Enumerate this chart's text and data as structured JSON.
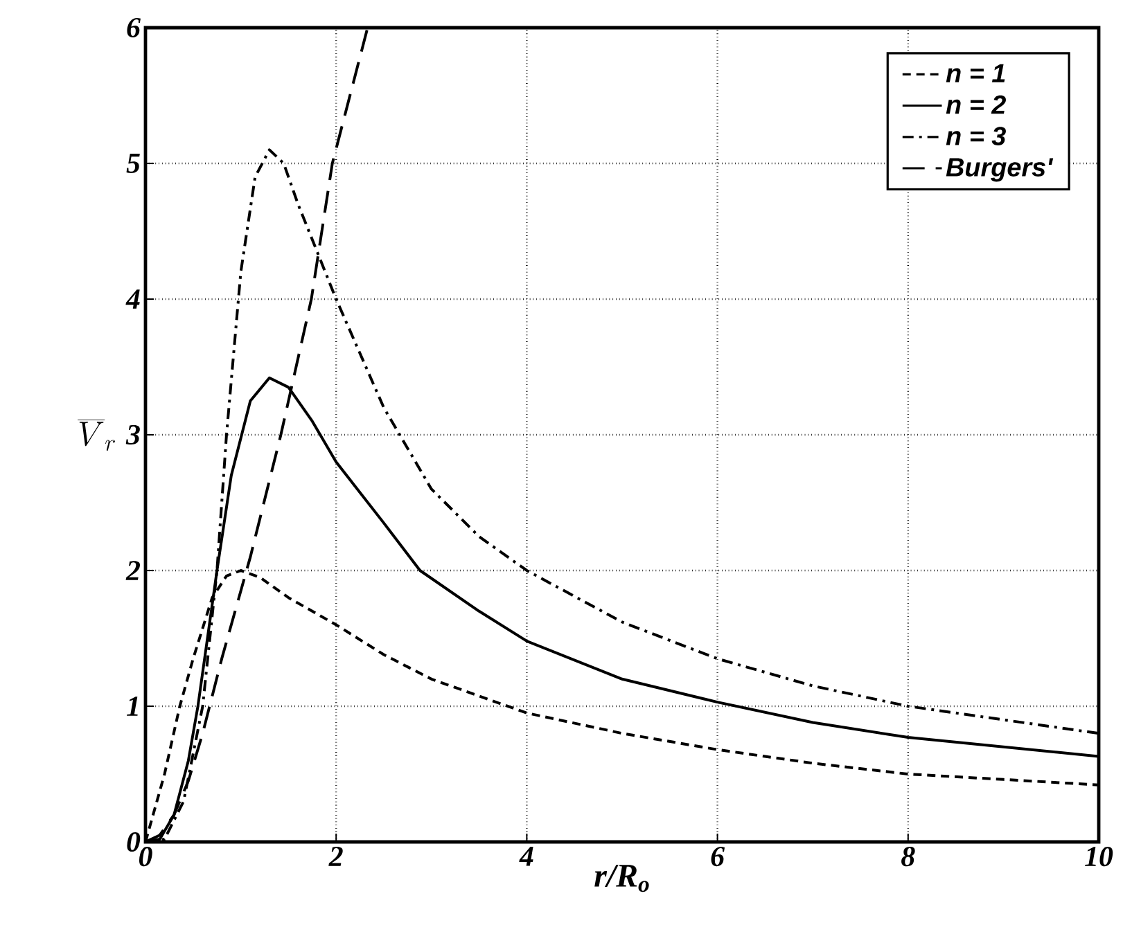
{
  "chart_data": {
    "type": "line",
    "xlabel": "r/R$_{o}$",
    "ylabel": "\\overline{V}_{r}",
    "xlim": [
      0,
      10
    ],
    "ylim": [
      0,
      6
    ],
    "xticks": [
      0,
      2,
      4,
      6,
      8,
      10
    ],
    "yticks": [
      0,
      1,
      2,
      3,
      4,
      5,
      6
    ],
    "grid": true,
    "legend": "top right",
    "marker": "none",
    "series": [
      {
        "name": "n = 1",
        "color": "#000000",
        "line_style": "dashed",
        "x": [
          0,
          0.1,
          0.2,
          0.36,
          0.5,
          0.7,
          0.85,
          1.0,
          1.2,
          1.5,
          2,
          2.5,
          3,
          4,
          5,
          6,
          7,
          8,
          9,
          10
        ],
        "values": [
          0,
          0.25,
          0.5,
          1.0,
          1.35,
          1.8,
          1.96,
          2.0,
          1.95,
          1.8,
          1.6,
          1.38,
          1.2,
          0.95,
          0.8,
          0.68,
          0.58,
          0.5,
          0.46,
          0.42
        ]
      },
      {
        "name": "n = 2",
        "color": "#000000",
        "line_style": "solid",
        "x": [
          0,
          0.15,
          0.3,
          0.45,
          0.55,
          0.75,
          0.9,
          1.1,
          1.3,
          1.5,
          1.75,
          2,
          2.5,
          2.88,
          3.5,
          4,
          5,
          6,
          7,
          8,
          9,
          10
        ],
        "values": [
          0,
          0.02,
          0.2,
          0.6,
          1.0,
          2.0,
          2.7,
          3.25,
          3.42,
          3.35,
          3.1,
          2.8,
          2.35,
          2.0,
          1.7,
          1.48,
          1.2,
          1.03,
          0.88,
          0.77,
          0.7,
          0.63
        ]
      },
      {
        "name": "n = 3",
        "color": "#000000",
        "line_style": "dashdot",
        "x": [
          0,
          0.2,
          0.4,
          0.6,
          0.75,
          0.85,
          1.0,
          1.15,
          1.3,
          1.45,
          1.6,
          2,
          2.5,
          3,
          3.5,
          4,
          5,
          6,
          7,
          8,
          9,
          10
        ],
        "values": [
          0,
          0.02,
          0.3,
          1.0,
          2.0,
          3.0,
          4.2,
          4.9,
          5.1,
          5.0,
          4.7,
          4.0,
          3.2,
          2.6,
          2.25,
          2.0,
          1.62,
          1.35,
          1.15,
          1.0,
          0.9,
          0.8
        ]
      },
      {
        "name": "Burgers'",
        "color": "#000000",
        "line_style": "longdashed",
        "x": [
          0,
          0.15,
          0.3,
          0.45,
          0.6,
          0.8,
          1.1,
          1.42,
          1.74,
          1.96,
          2.33
        ],
        "values": [
          0,
          0.05,
          0.2,
          0.45,
          0.8,
          1.35,
          2.1,
          3.0,
          4.0,
          5.0,
          6.0
        ]
      }
    ]
  }
}
